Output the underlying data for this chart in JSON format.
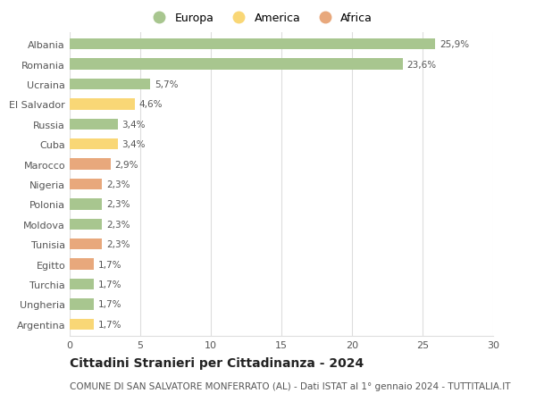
{
  "categories": [
    "Albania",
    "Romania",
    "Ucraina",
    "El Salvador",
    "Russia",
    "Cuba",
    "Marocco",
    "Nigeria",
    "Polonia",
    "Moldova",
    "Tunisia",
    "Egitto",
    "Turchia",
    "Ungheria",
    "Argentina"
  ],
  "values": [
    25.9,
    23.6,
    5.7,
    4.6,
    3.4,
    3.4,
    2.9,
    2.3,
    2.3,
    2.3,
    2.3,
    1.7,
    1.7,
    1.7,
    1.7
  ],
  "labels": [
    "25,9%",
    "23,6%",
    "5,7%",
    "4,6%",
    "3,4%",
    "3,4%",
    "2,9%",
    "2,3%",
    "2,3%",
    "2,3%",
    "2,3%",
    "1,7%",
    "1,7%",
    "1,7%",
    "1,7%"
  ],
  "continents": [
    "Europa",
    "Europa",
    "Europa",
    "America",
    "Europa",
    "America",
    "Africa",
    "Africa",
    "Europa",
    "Europa",
    "Africa",
    "Africa",
    "Europa",
    "Europa",
    "America"
  ],
  "colors": {
    "Europa": "#a8c68f",
    "America": "#f9d776",
    "Africa": "#e8a87c"
  },
  "xlim": [
    0,
    30
  ],
  "xticks": [
    0,
    5,
    10,
    15,
    20,
    25,
    30
  ],
  "title": "Cittadini Stranieri per Cittadinanza - 2024",
  "subtitle": "COMUNE DI SAN SALVATORE MONFERRATO (AL) - Dati ISTAT al 1° gennaio 2024 - TUTTITALIA.IT",
  "background_color": "#ffffff",
  "grid_color": "#dddddd",
  "bar_height": 0.55,
  "title_fontsize": 10,
  "subtitle_fontsize": 7.5,
  "label_fontsize": 7.5,
  "tick_fontsize": 8,
  "legend_fontsize": 9
}
